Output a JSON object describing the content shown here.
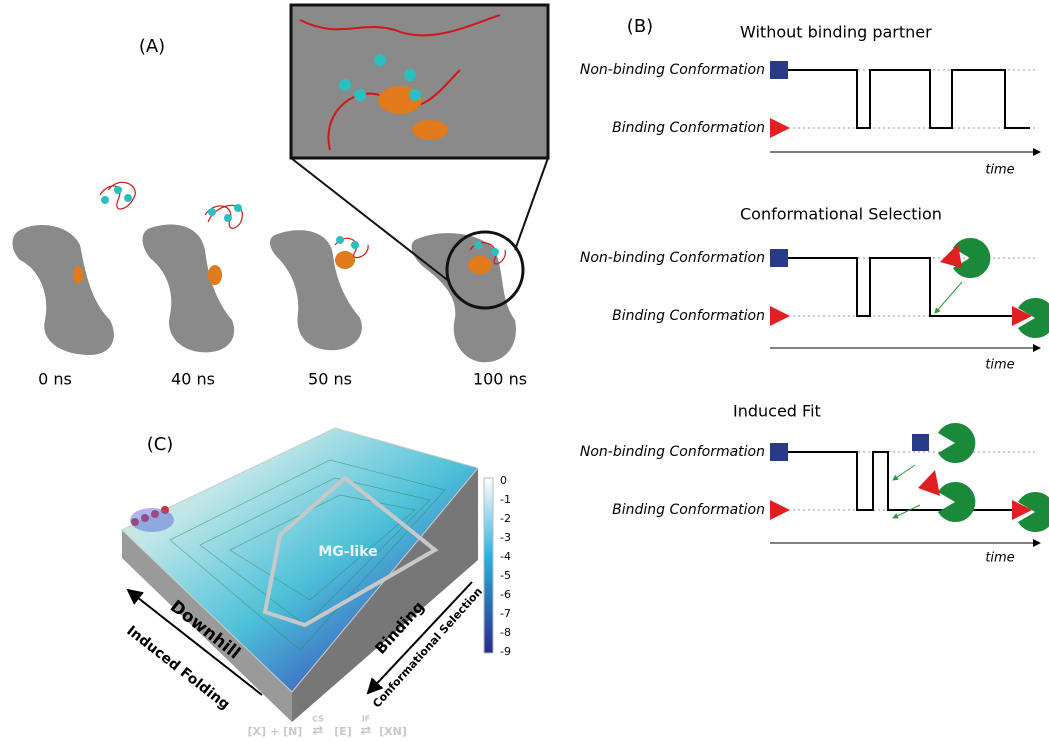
{
  "panel_a": {
    "label": "(A)",
    "times": [
      "0 ns",
      "40 ns",
      "50 ns",
      "100 ns"
    ]
  },
  "panel_b": {
    "label": "(B)",
    "scenarios": [
      {
        "title": "Without binding partner",
        "states": [
          "Non-binding Conformation",
          "Binding Conformation"
        ],
        "axis": "time"
      },
      {
        "title": "Conformational Selection",
        "states": [
          "Non-binding Conformation",
          "Binding Conformation"
        ],
        "axis": "time"
      },
      {
        "title": "Induced Fit",
        "states": [
          "Non-binding Conformation",
          "Binding Conformation"
        ],
        "axis": "time"
      }
    ]
  },
  "panel_c": {
    "label": "(C)",
    "region": "MG-like",
    "left_axis": "Downhill",
    "left_sub": "Induced Folding",
    "right_axis": "Binding",
    "right_sub": "Conformational Selection",
    "colorbar_ticks": [
      0,
      -1,
      -2,
      -3,
      -4,
      -5,
      -6,
      -7,
      -8,
      -9
    ],
    "equation": {
      "parts": [
        "[X] + [N]",
        "[E]",
        "[XN]"
      ],
      "arrows": [
        "CS",
        "IF"
      ]
    }
  }
}
